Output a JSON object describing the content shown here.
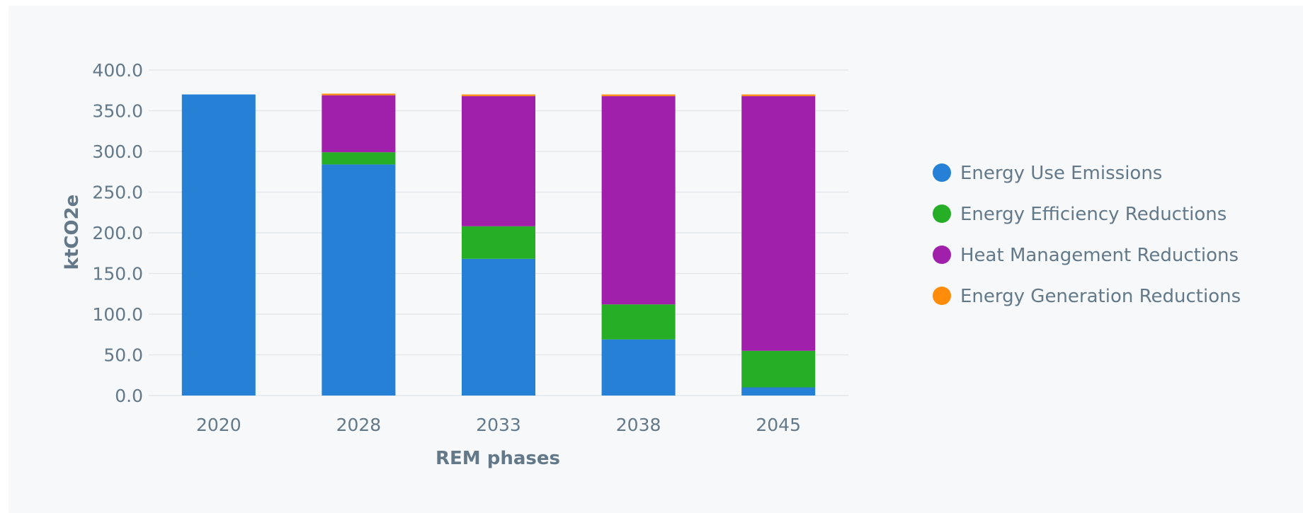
{
  "chart_data": {
    "type": "bar",
    "stacked": true,
    "categories": [
      "2020",
      "2028",
      "2033",
      "2038",
      "2045"
    ],
    "xlabel": "REM phases",
    "ylabel": "ktCO2e",
    "ylim": [
      0,
      400
    ],
    "yticks": [
      "0.0",
      "50.0",
      "100.0",
      "150.0",
      "200.0",
      "250.0",
      "300.0",
      "350.0",
      "400.0"
    ],
    "grid": true,
    "legend_position": "right",
    "series": [
      {
        "name": "Energy Use Emissions",
        "color": "#2680d6",
        "values": [
          370,
          284,
          168,
          69,
          10
        ]
      },
      {
        "name": "Energy Efficiency Reductions",
        "color": "#26ae26",
        "values": [
          0,
          15,
          40,
          43,
          45
        ]
      },
      {
        "name": "Heat Management Reductions",
        "color": "#a020ac",
        "values": [
          0,
          70,
          160,
          256,
          313
        ]
      },
      {
        "name": "Energy Generation Reductions",
        "color": "#ff8c0a",
        "values": [
          0,
          2,
          2,
          2,
          2
        ]
      }
    ]
  }
}
